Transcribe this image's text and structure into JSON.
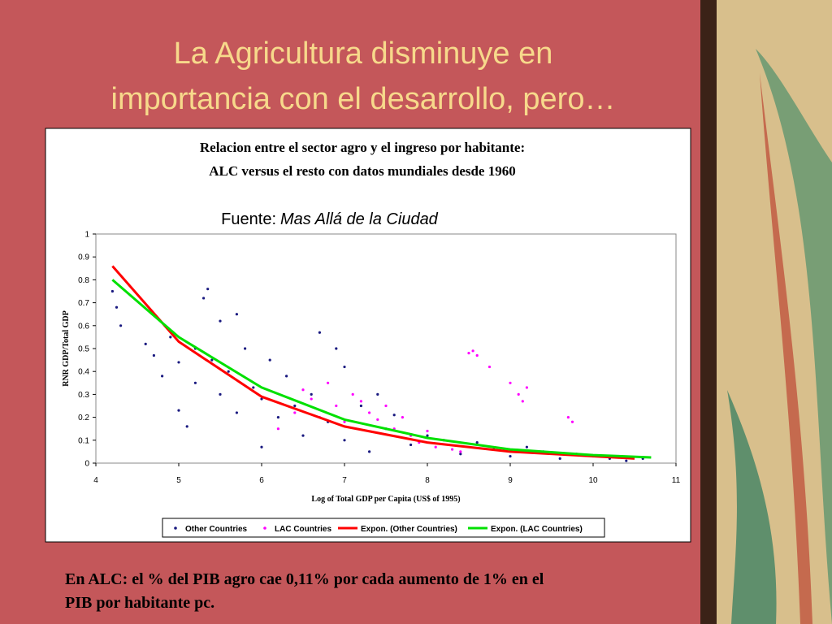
{
  "slide_title": [
    "La Agricultura disminuye en",
    "importancia  con el desarrollo, pero…"
  ],
  "chart_data": {
    "type": "scatter",
    "title": [
      "Relacion entre el sector agro y el ingreso por habitante:",
      "ALC versus el resto con datos mundiales desde 1960"
    ],
    "source_label": "Fuente:",
    "source": "Mas Allá de la Ciudad",
    "x_label": "Log of Total GDP per Capita (US$ of 1995)",
    "y_label": "RNR GDP/Total GDP",
    "xlim": [
      4,
      11
    ],
    "xticks": [
      4,
      5,
      6,
      7,
      8,
      9,
      10,
      11
    ],
    "ylim": [
      0,
      1
    ],
    "yticks": [
      0,
      0.1,
      0.2,
      0.3,
      0.4,
      0.5,
      0.6,
      0.7,
      0.8,
      0.9,
      1
    ],
    "series": [
      {
        "name": "Other Countries",
        "color": "#1a1a80",
        "marker": "dot",
        "x": [
          4.2,
          4.25,
          4.3,
          4.6,
          4.7,
          4.8,
          4.9,
          5.0,
          5.0,
          5.1,
          5.2,
          5.2,
          5.3,
          5.35,
          5.4,
          5.5,
          5.5,
          5.6,
          5.7,
          5.7,
          5.8,
          5.9,
          6.0,
          6.0,
          6.1,
          6.2,
          6.3,
          6.4,
          6.5,
          6.6,
          6.7,
          6.8,
          6.9,
          7.0,
          7.0,
          7.2,
          7.3,
          7.4,
          7.5,
          7.6,
          7.8,
          8.0,
          8.2,
          8.4,
          8.6,
          8.8,
          9.0,
          9.2,
          9.4,
          9.6,
          9.8,
          10.0,
          10.2,
          10.4,
          10.6
        ],
        "values": [
          0.75,
          0.68,
          0.6,
          0.52,
          0.47,
          0.38,
          0.55,
          0.44,
          0.23,
          0.16,
          0.5,
          0.35,
          0.72,
          0.76,
          0.45,
          0.3,
          0.62,
          0.4,
          0.65,
          0.22,
          0.5,
          0.33,
          0.28,
          0.07,
          0.45,
          0.2,
          0.38,
          0.25,
          0.12,
          0.3,
          0.57,
          0.18,
          0.5,
          0.1,
          0.42,
          0.25,
          0.05,
          0.3,
          0.15,
          0.21,
          0.08,
          0.12,
          0.1,
          0.04,
          0.09,
          0.06,
          0.03,
          0.07,
          0.05,
          0.02,
          0.04,
          0.03,
          0.02,
          0.01,
          0.02
        ]
      },
      {
        "name": "LAC Countries",
        "color": "#ff00ff",
        "marker": "dot",
        "x": [
          6.2,
          6.4,
          6.5,
          6.6,
          6.7,
          6.8,
          6.9,
          7.0,
          7.1,
          7.2,
          7.3,
          7.4,
          7.5,
          7.6,
          7.7,
          7.8,
          7.9,
          8.0,
          8.1,
          8.2,
          8.3,
          8.4,
          8.5,
          8.55,
          8.6,
          8.75,
          9.0,
          9.1,
          9.15,
          9.2,
          9.7,
          9.75
        ],
        "values": [
          0.15,
          0.22,
          0.32,
          0.28,
          0.2,
          0.35,
          0.25,
          0.18,
          0.3,
          0.27,
          0.22,
          0.19,
          0.25,
          0.15,
          0.2,
          0.12,
          0.09,
          0.14,
          0.07,
          0.1,
          0.06,
          0.05,
          0.48,
          0.49,
          0.47,
          0.42,
          0.35,
          0.3,
          0.27,
          0.33,
          0.2,
          0.18
        ]
      },
      {
        "name": "Expon. (Other Countries)",
        "color": "#ff0000",
        "marker": "line",
        "x": [
          4.2,
          5,
          6,
          7,
          8,
          9,
          10,
          10.5
        ],
        "values": [
          0.86,
          0.53,
          0.29,
          0.16,
          0.09,
          0.05,
          0.03,
          0.02
        ]
      },
      {
        "name": "Expon. (LAC Countries)",
        "color": "#00e000",
        "marker": "line",
        "x": [
          4.2,
          5,
          6,
          7,
          8,
          9,
          10,
          10.7
        ],
        "values": [
          0.8,
          0.55,
          0.33,
          0.19,
          0.11,
          0.06,
          0.035,
          0.025
        ]
      }
    ]
  },
  "footnote": [
    "En ALC: el % del PIB agro cae 0,11% por cada aumento de 1% en el",
    "PIB por habitante pc."
  ]
}
